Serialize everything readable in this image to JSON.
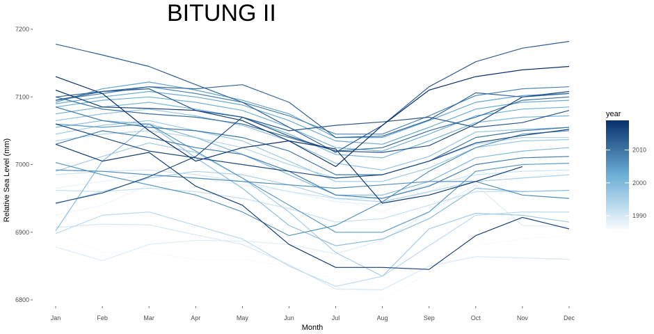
{
  "chart_data": {
    "type": "line",
    "title": "BITUNG II",
    "xlabel": "Month",
    "ylabel": "Relative Sea Level (mm)",
    "categories": [
      "Jan",
      "Feb",
      "Mar",
      "Apr",
      "May",
      "Jun",
      "Jul",
      "Aug",
      "Sep",
      "Oct",
      "Nov",
      "Dec"
    ],
    "yticks": [
      6800,
      6900,
      7000,
      7100,
      7200
    ],
    "ylim": [
      6790,
      7200
    ],
    "grid": false,
    "legend": {
      "title": "year",
      "position": "right",
      "ticks": [
        1990,
        2000,
        2010
      ],
      "range": [
        1986,
        2019
      ],
      "color_low": "#f7fbff",
      "color_high": "#08306b"
    },
    "series": [
      {
        "year": 1986,
        "values": [
          6900,
          6870,
          6870,
          6860,
          6860,
          6850,
          6830,
          6800,
          6840,
          6880,
          6890,
          6895
        ]
      },
      {
        "year": 1987,
        "values": [
          6925,
          6940,
          6970,
          6980,
          6975,
          6960,
          6950,
          6930,
          6960,
          6990,
          6980,
          6990
        ]
      },
      {
        "year": 1988,
        "values": [
          6965,
          6975,
          6985,
          6980,
          6970,
          6960,
          6945,
          6940,
          6960,
          6985,
          6990,
          6992
        ]
      },
      {
        "year": 1989,
        "values": [
          6878,
          6858,
          6882,
          6888,
          6887,
          6882,
          6868,
          6888,
          6930,
          6970,
          6910,
          6908
        ]
      },
      {
        "year": 1990,
        "values": [
          6907,
          6912,
          6911,
          6896,
          6882,
          6852,
          6816,
          6815,
          6850,
          6864,
          6862,
          6860
        ]
      },
      {
        "year": 1991,
        "values": [
          6985,
          6990,
          6992,
          6985,
          6975,
          6960,
          6950,
          6950,
          6970,
          6985,
          6990,
          6992
        ]
      },
      {
        "year": 1992,
        "values": [
          6962,
          6960,
          6965,
          6960,
          6950,
          6935,
          6915,
          6920,
          6940,
          6960,
          6960,
          6962
        ]
      },
      {
        "year": 1993,
        "values": [
          6898,
          6925,
          6930,
          6910,
          6890,
          6850,
          6820,
          6835,
          6880,
          6925,
          6930,
          6930
        ]
      },
      {
        "year": 1994,
        "values": [
          7035,
          7045,
          7050,
          7040,
          7025,
          7000,
          6980,
          6985,
          7005,
          7030,
          7040,
          7040
        ]
      },
      {
        "year": 1995,
        "values": [
          6942,
          6960,
          6980,
          6990,
          6985,
          6970,
          6950,
          6945,
          6960,
          6975,
          6980,
          6985
        ]
      },
      {
        "year": 1996,
        "values": [
          6990,
          7012,
          7032,
          7018,
          6980,
          6930,
          6870,
          6835,
          6905,
          6928,
          6925,
          6915
        ]
      },
      {
        "year": 1997,
        "values": [
          7045,
          7058,
          7065,
          7050,
          7035,
          7005,
          6975,
          6975,
          6995,
          7025,
          7035,
          7037
        ]
      },
      {
        "year": 1998,
        "values": [
          7065,
          7075,
          7082,
          7072,
          7058,
          7035,
          7002,
          6992,
          7012,
          7048,
          7052,
          7055
        ]
      },
      {
        "year": 1999,
        "values": [
          6902,
          7005,
          7060,
          7010,
          6965,
          6910,
          6880,
          6890,
          6920,
          6965,
          6960,
          6962
        ]
      },
      {
        "year": 2000,
        "values": [
          7055,
          7065,
          7060,
          7040,
          7015,
          6985,
          6955,
          6955,
          6975,
          7010,
          7020,
          7025
        ]
      },
      {
        "year": 2001,
        "values": [
          7075,
          7085,
          7092,
          7082,
          7070,
          7045,
          7015,
          7010,
          7035,
          7062,
          7070,
          7072
        ]
      },
      {
        "year": 2002,
        "values": [
          7085,
          7095,
          7100,
          7092,
          7080,
          7055,
          7025,
          7020,
          7045,
          7072,
          7082,
          7085
        ]
      },
      {
        "year": 2003,
        "values": [
          7090,
          7100,
          7108,
          7100,
          7088,
          7065,
          7035,
          7030,
          7055,
          7082,
          7092,
          7095
        ]
      },
      {
        "year": 2004,
        "values": [
          7092,
          7112,
          7122,
          7110,
          7095,
          7075,
          7040,
          7040,
          7065,
          7092,
          7102,
          7105
        ]
      },
      {
        "year": 2005,
        "values": [
          7060,
          7055,
          7060,
          7020,
          6980,
          6940,
          6900,
          6900,
          6930,
          6990,
          7000,
          7002
        ]
      },
      {
        "year": 2006,
        "values": [
          7003,
          6985,
          6970,
          6955,
          6930,
          6895,
          6910,
          6945,
          6990,
          7025,
          7045,
          7050
        ]
      },
      {
        "year": 2007,
        "values": [
          6992,
          6990,
          6985,
          6980,
          6975,
          6970,
          6965,
          6970,
          6975,
          6975,
          6955,
          6950
        ]
      },
      {
        "year": 2008,
        "values": [
          7095,
          7105,
          7115,
          7105,
          7092,
          7072,
          7045,
          7045,
          7072,
          7102,
          7112,
          7115
        ]
      },
      {
        "year": 2009,
        "values": [
          7030,
          7050,
          7040,
          7025,
          7015,
          6990,
          6955,
          6950,
          6968,
          7000,
          7010,
          7012
        ]
      },
      {
        "year": 2010,
        "values": [
          7085,
          7065,
          7055,
          7050,
          7040,
          7020,
          6985,
          6985,
          7005,
          7040,
          7050,
          7055
        ]
      },
      {
        "year": 2011,
        "values": [
          7100,
          7082,
          7075,
          7070,
          7060,
          7040,
          7020,
          7025,
          7050,
          7070,
          7095,
          7100
        ]
      },
      {
        "year": 2012,
        "values": [
          7100,
          7108,
          7115,
          7112,
          7118,
          7092,
          7040,
          7042,
          7066,
          7106,
          7100,
          7105
        ]
      },
      {
        "year": 2013,
        "values": [
          7178,
          7162,
          7145,
          7118,
          7092,
          7055,
          7018,
          7058,
          7115,
          7152,
          7172,
          7182
        ]
      },
      {
        "year": 2014,
        "values": [
          7095,
          7108,
          7112,
          7080,
          7070,
          7050,
          7058,
          7063,
          7070,
          7055,
          7062,
          7080
        ]
      },
      {
        "year": 2015,
        "values": [
          6943,
          6958,
          6982,
          7012,
          7070,
          7042,
          7020,
          7018,
          7028,
          7060,
          7100,
          7108
        ]
      },
      {
        "year": 2016,
        "values": [
          7060,
          7040,
          7020,
          7010,
          7000,
          6990,
          6980,
          6985,
          7005,
          7032,
          7043,
          7052
        ]
      },
      {
        "year": 2017,
        "values": [
          7030,
          7005,
          7018,
          6968,
          6940,
          6882,
          6848,
          6848,
          6845,
          6895,
          6922,
          6905
        ]
      },
      {
        "year": 2018,
        "values": [
          7110,
          7085,
          7083,
          7080,
          7065,
          7035,
          7023,
          6943,
          6955,
          6975,
          6997,
          null
        ]
      },
      {
        "year": 2019,
        "values": [
          7130,
          7105,
          7050,
          7005,
          7025,
          7035,
          6997,
          7058,
          7110,
          7130,
          7140,
          7145
        ]
      }
    ]
  }
}
